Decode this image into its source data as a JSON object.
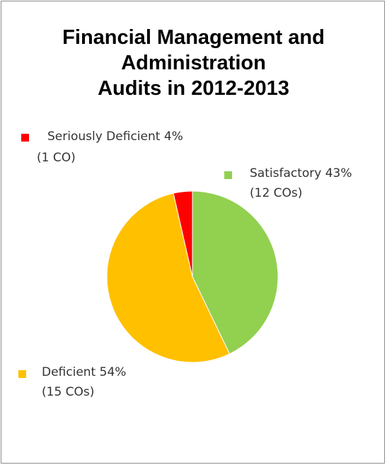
{
  "chart_data": {
    "type": "pie",
    "title_lines": [
      "Financial Management and",
      "Administration",
      "Audits in 2012-2013"
    ],
    "slices": [
      {
        "label": "Satisfactory",
        "percent_label": "43%",
        "count_label": "(12 COs)",
        "value": 12,
        "color": "#92d050"
      },
      {
        "label": "Deficient",
        "percent_label": "54%",
        "count_label": "(15 COs)",
        "value": 15,
        "color": "#ffc000"
      },
      {
        "label": "Seriously Deficient",
        "percent_label": "4%",
        "count_label": "(1 CO)",
        "value": 1,
        "color": "#ff0000"
      }
    ]
  }
}
